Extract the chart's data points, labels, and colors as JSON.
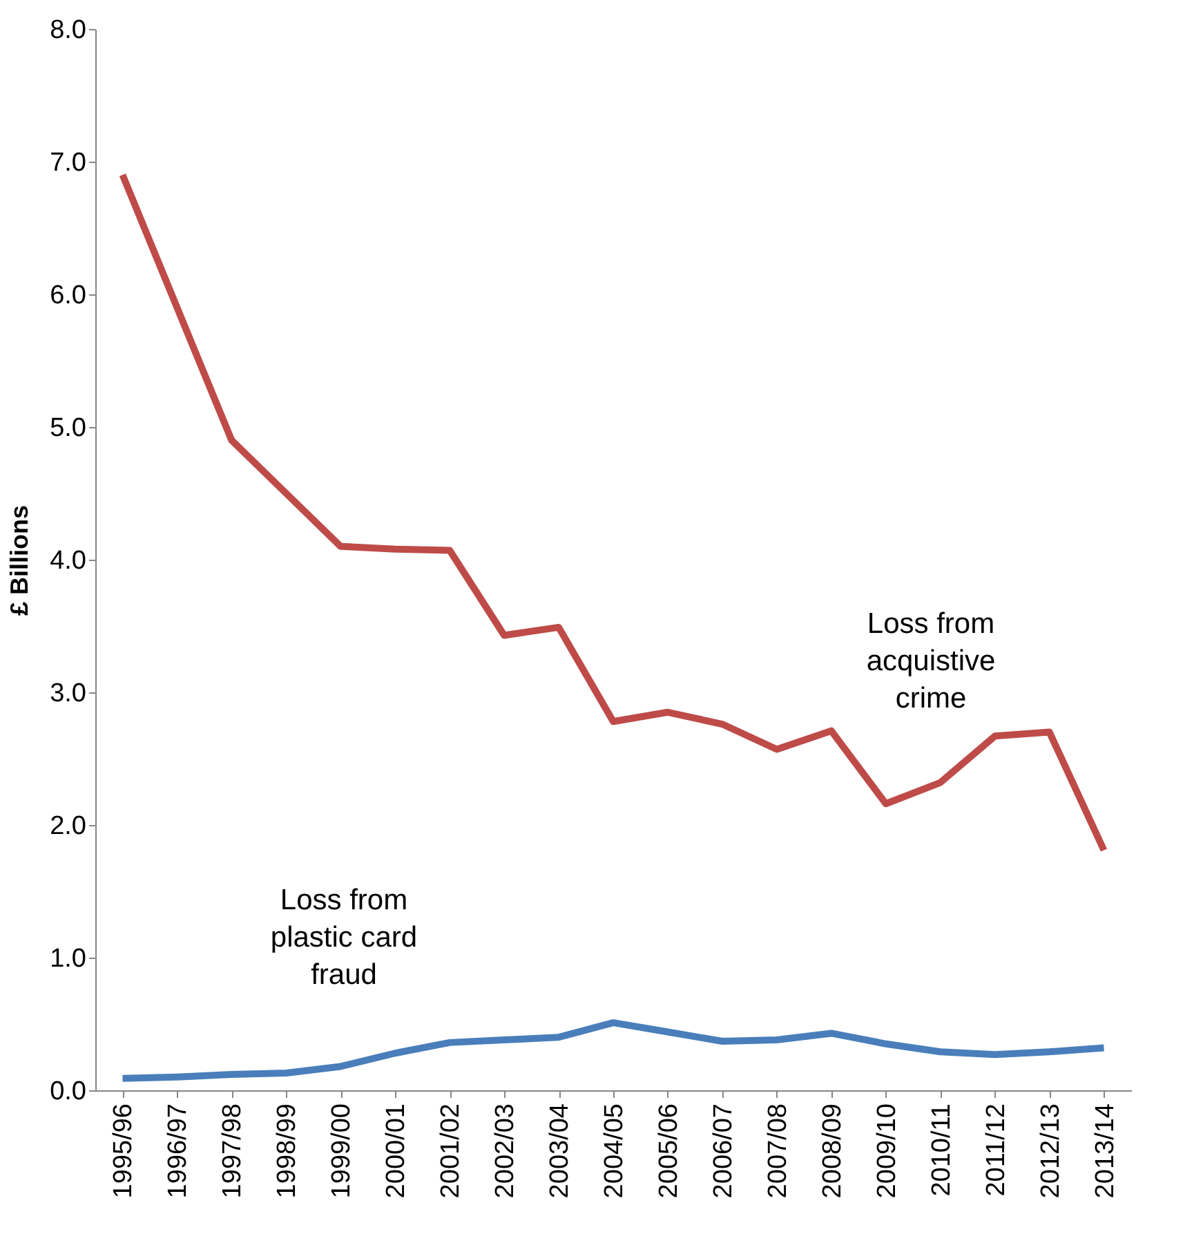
{
  "chart_data": {
    "type": "line",
    "ylabel": "£ Billions",
    "categories": [
      "1995/96",
      "1996/97",
      "1997/98",
      "1998/99",
      "1999/00",
      "2000/01",
      "2001/02",
      "2002/03",
      "2003/04",
      "2004/05",
      "2005/06",
      "2006/07",
      "2007/08",
      "2008/09",
      "2009/10",
      "2010/11",
      "2011/12",
      "2012/13",
      "2013/14"
    ],
    "series": [
      {
        "color": "#be4b48",
        "values": [
          6.9,
          5.9,
          4.9,
          4.5,
          4.1,
          4.08,
          4.07,
          3.43,
          3.49,
          2.78,
          2.85,
          2.76,
          2.57,
          2.71,
          2.16,
          2.32,
          2.67,
          2.7,
          1.81
        ]
      },
      {
        "color": "#4a7ebb",
        "values": [
          0.09,
          0.1,
          0.12,
          0.13,
          0.18,
          0.28,
          0.36,
          0.38,
          0.4,
          0.51,
          0.44,
          0.37,
          0.38,
          0.43,
          0.35,
          0.29,
          0.27,
          0.29,
          0.32
        ]
      }
    ],
    "ylim": [
      0,
      8
    ],
    "yticks": [
      {
        "value": 0,
        "label": "0.0"
      },
      {
        "value": 1,
        "label": "1.0"
      },
      {
        "value": 2,
        "label": "2.0"
      },
      {
        "value": 3,
        "label": "3.0"
      },
      {
        "value": 4,
        "label": "4.0"
      },
      {
        "value": 5,
        "label": "5.0"
      },
      {
        "value": 6,
        "label": "6.0"
      },
      {
        "value": 7,
        "label": "7.0"
      },
      {
        "value": 8,
        "label": "8.0"
      }
    ],
    "grid": false,
    "marker": "none",
    "line_style": "solid",
    "annotations": [
      "Loss from\nacquistive\ncrime",
      "Loss from\nplastic card\nfraud"
    ]
  }
}
